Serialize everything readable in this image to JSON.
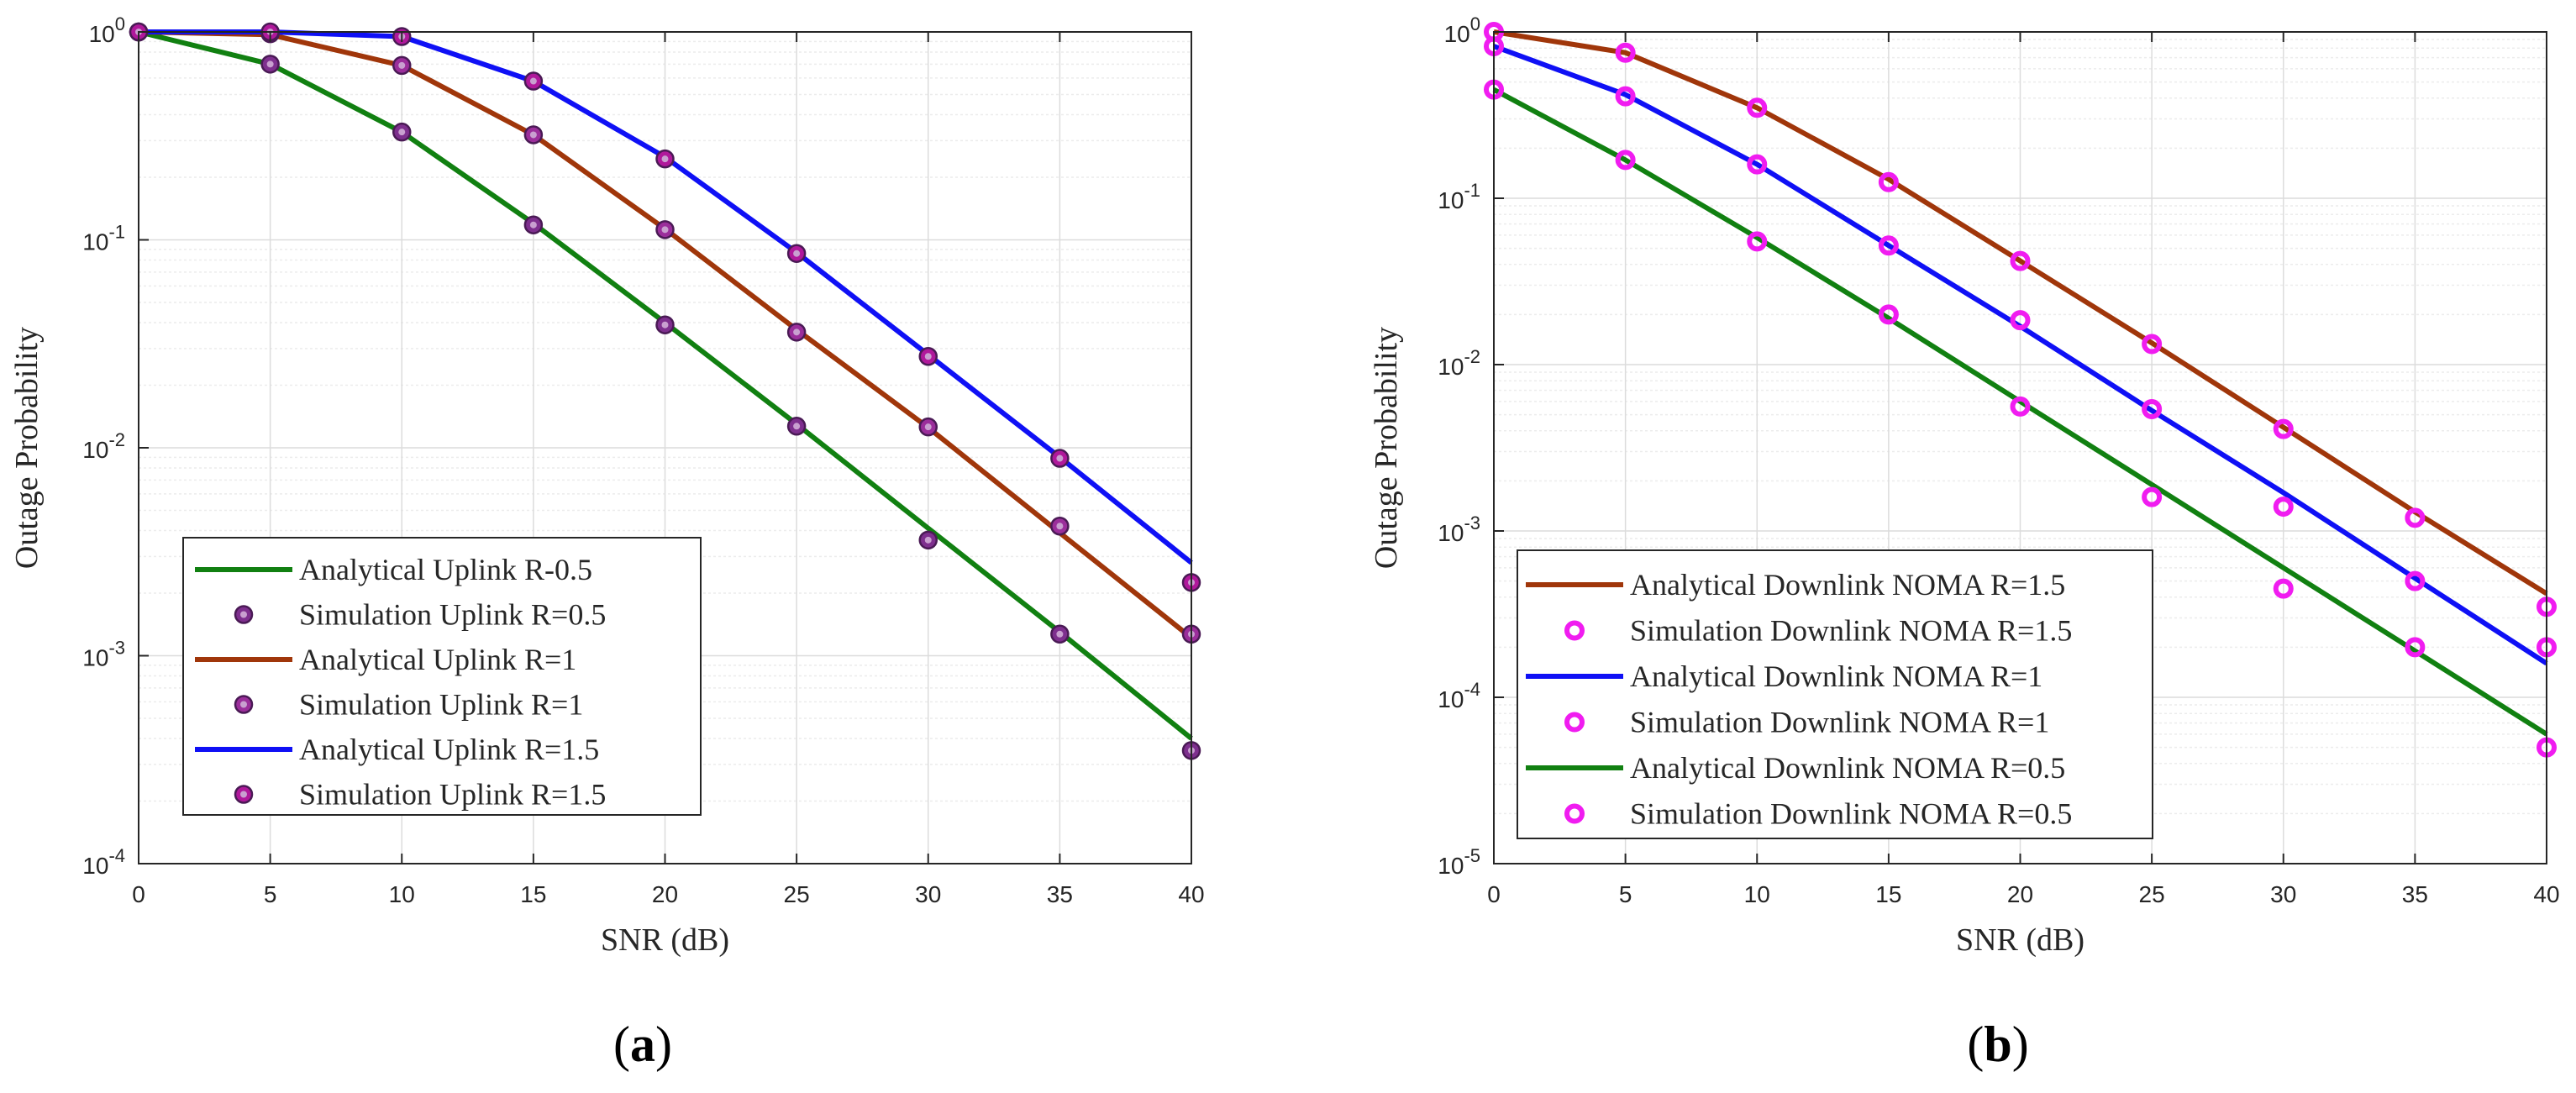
{
  "chart_data": [
    {
      "type": "line",
      "panel": "a",
      "caption_prefix": "(",
      "caption_letter": "a",
      "caption_suffix": ")",
      "xlabel": "SNR (dB)",
      "ylabel": "Outage Probability",
      "yscale": "log",
      "xlim": [
        0,
        40
      ],
      "ylim_exp": [
        -4,
        0
      ],
      "x_ticks": [
        "0",
        "5",
        "10",
        "15",
        "20",
        "25",
        "30",
        "35",
        "40"
      ],
      "y_ticks": [
        {
          "base": "10",
          "exp": "-4"
        },
        {
          "base": "10",
          "exp": "-3"
        },
        {
          "base": "10",
          "exp": "-2"
        },
        {
          "base": "10",
          "exp": "-1"
        },
        {
          "base": "10",
          "exp": "0"
        }
      ],
      "grid": true,
      "legend_position": "bottom-left",
      "x": [
        0,
        5,
        10,
        15,
        20,
        25,
        30,
        35,
        40
      ],
      "series": [
        {
          "name": "Analytical Uplink R-0.5",
          "kind": "line",
          "color": "#118011",
          "values": [
            1.0,
            0.7,
            0.33,
            0.12,
            0.04,
            0.013,
            0.0041,
            0.0013,
            0.0004
          ]
        },
        {
          "name": "Simulation Uplink R=0.5",
          "kind": "marker",
          "color": "#7E2F8E",
          "values": [
            1.0,
            0.7,
            0.33,
            0.118,
            0.039,
            0.0127,
            0.0036,
            0.00127,
            0.00035
          ]
        },
        {
          "name": "Analytical Uplink R=1",
          "kind": "line",
          "color": "#A0360A",
          "values": [
            1.0,
            0.97,
            0.69,
            0.32,
            0.113,
            0.037,
            0.0125,
            0.0039,
            0.00122
          ]
        },
        {
          "name": "Simulation Uplink R=1",
          "kind": "marker",
          "color": "#9B2E9B",
          "values": [
            1.0,
            0.98,
            0.69,
            0.32,
            0.112,
            0.036,
            0.0126,
            0.0042,
            0.00127
          ]
        },
        {
          "name": "Analytical Uplink R=1.5",
          "kind": "line",
          "color": "#0F10F5",
          "values": [
            1.0,
            1.0,
            0.95,
            0.58,
            0.25,
            0.087,
            0.028,
            0.009,
            0.0028
          ]
        },
        {
          "name": "Simulation Uplink R=1.5",
          "kind": "marker",
          "color": "#B0189B",
          "values": [
            1.0,
            1.0,
            0.95,
            0.58,
            0.245,
            0.086,
            0.0275,
            0.0089,
            0.00225
          ]
        }
      ]
    },
    {
      "type": "line",
      "panel": "b",
      "caption_prefix": "(",
      "caption_letter": "b",
      "caption_suffix": ")",
      "xlabel": "SNR (dB)",
      "ylabel": "Outage Probability",
      "yscale": "log",
      "xlim": [
        0,
        40
      ],
      "ylim_exp": [
        -5,
        0
      ],
      "x_ticks": [
        "0",
        "5",
        "10",
        "15",
        "20",
        "25",
        "30",
        "35",
        "40"
      ],
      "y_ticks": [
        {
          "base": "10",
          "exp": "-5"
        },
        {
          "base": "10",
          "exp": "-4"
        },
        {
          "base": "10",
          "exp": "-3"
        },
        {
          "base": "10",
          "exp": "-2"
        },
        {
          "base": "10",
          "exp": "-1"
        },
        {
          "base": "10",
          "exp": "0"
        }
      ],
      "grid": true,
      "legend_position": "bottom-left",
      "x": [
        0,
        5,
        10,
        15,
        20,
        25,
        30,
        35,
        40
      ],
      "series": [
        {
          "name": "Analytical Downlink NOMA R=1.5",
          "kind": "line",
          "color": "#A0360A",
          "values": [
            1.0,
            0.75,
            0.35,
            0.13,
            0.042,
            0.0135,
            0.0042,
            0.0013,
            0.00042
          ]
        },
        {
          "name": "Simulation Downlink NOMA R=1.5",
          "kind": "marker",
          "color": "#F01CF0",
          "values": [
            1.0,
            0.75,
            0.35,
            0.125,
            0.042,
            0.0133,
            0.0041,
            0.0012,
            0.00035
          ]
        },
        {
          "name": "Analytical Downlink NOMA R=1",
          "kind": "line",
          "color": "#0F10F5",
          "values": [
            0.82,
            0.42,
            0.16,
            0.052,
            0.017,
            0.0053,
            0.0017,
            0.00052,
            0.00016
          ]
        },
        {
          "name": "Simulation Downlink NOMA R=1",
          "kind": "marker",
          "color": "#F01CF0",
          "values": [
            0.82,
            0.41,
            0.16,
            0.052,
            0.0185,
            0.0054,
            0.0014,
            0.0005,
            0.0002
          ]
        },
        {
          "name": "Analytical Downlink NOMA R=0.5",
          "kind": "line",
          "color": "#118011",
          "values": [
            0.45,
            0.17,
            0.058,
            0.019,
            0.006,
            0.0019,
            0.0006,
            0.00019,
            6e-05
          ]
        },
        {
          "name": "Simulation Downlink NOMA R=0.5",
          "kind": "marker",
          "color": "#F01CF0",
          "values": [
            0.45,
            0.17,
            0.055,
            0.02,
            0.0056,
            0.0016,
            0.00045,
            0.0002,
            5e-05
          ]
        }
      ]
    }
  ]
}
